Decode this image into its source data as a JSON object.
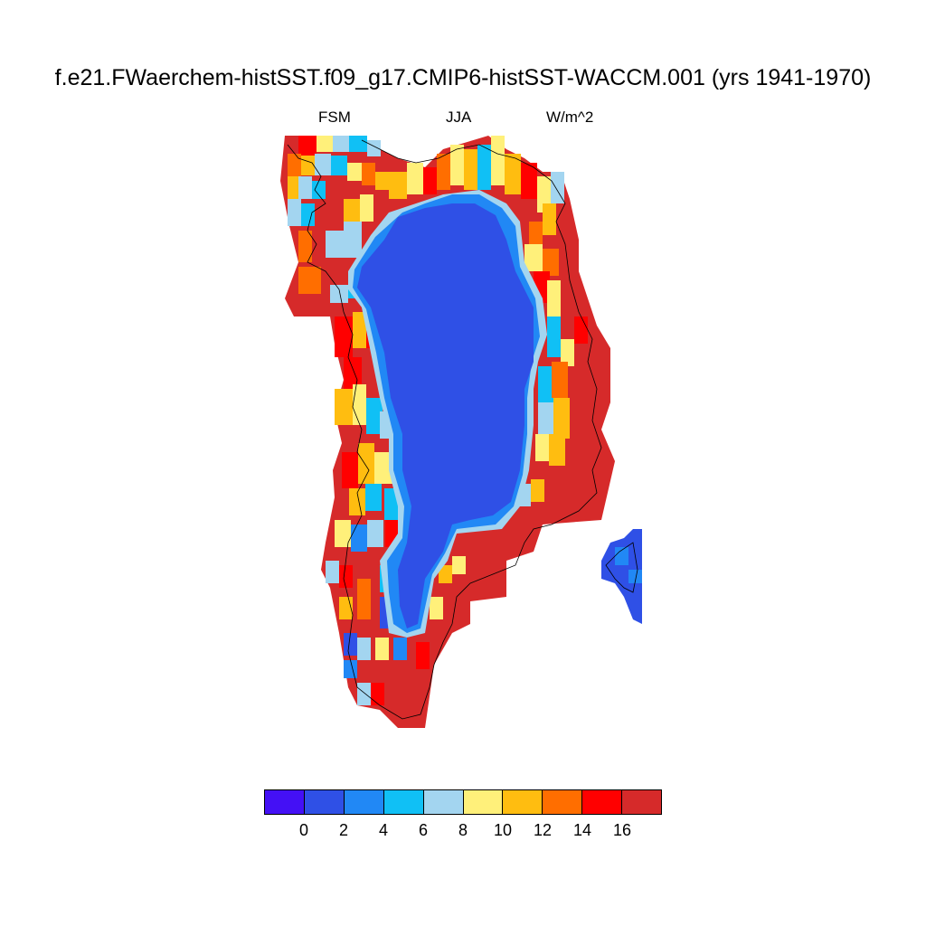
{
  "header": {
    "title": "f.e21.FWaerchem-histSST.f09_g17.CMIP6-histSST-WACCM.001 (yrs 1941-1970)",
    "left_label": "FSM",
    "center_label": "JJA",
    "right_label": "W/m^2"
  },
  "colorbar": {
    "colors": [
      "#4410f5",
      "#2f50e6",
      "#2188f5",
      "#10c0f5",
      "#a3d5f0",
      "#fff07a",
      "#ffbd10",
      "#ff6e00",
      "#ff0000",
      "#d62a2a"
    ],
    "tick_labels": [
      "0",
      "2",
      "4",
      "6",
      "8",
      "10",
      "12",
      "14",
      "16"
    ]
  },
  "map": {
    "description_colors": {
      "interior": "#2f50e6",
      "coast": "#d62a2a"
    }
  }
}
